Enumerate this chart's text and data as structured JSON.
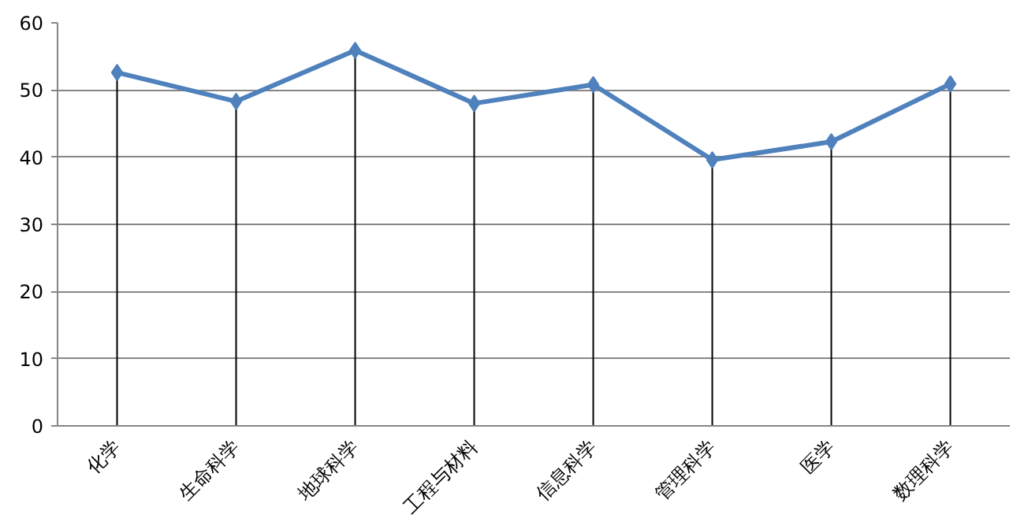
{
  "chart_data": {
    "type": "line",
    "categories": [
      "化学",
      "生命科学",
      "地球科学",
      "工程与材料",
      "信息科学",
      "管理科学",
      "医学",
      "数理科学"
    ],
    "series": [
      {
        "color": "#4f81bd",
        "values": [
          52.6,
          48.3,
          55.9,
          48.0,
          50.8,
          39.6,
          42.3,
          50.9
        ]
      },
      {
        "type": "lollipop",
        "color": "#4f81bd",
        "marker": "diamond",
        "values": [
          52.6,
          48.3,
          55.9,
          48.0,
          50.8,
          39.6,
          42.3,
          50.9
        ]
      }
    ],
    "ylim": [
      0,
      60
    ],
    "yticks": [
      0,
      10,
      20,
      30,
      40,
      50,
      60
    ],
    "grid": "y",
    "line_style": "solid"
  }
}
